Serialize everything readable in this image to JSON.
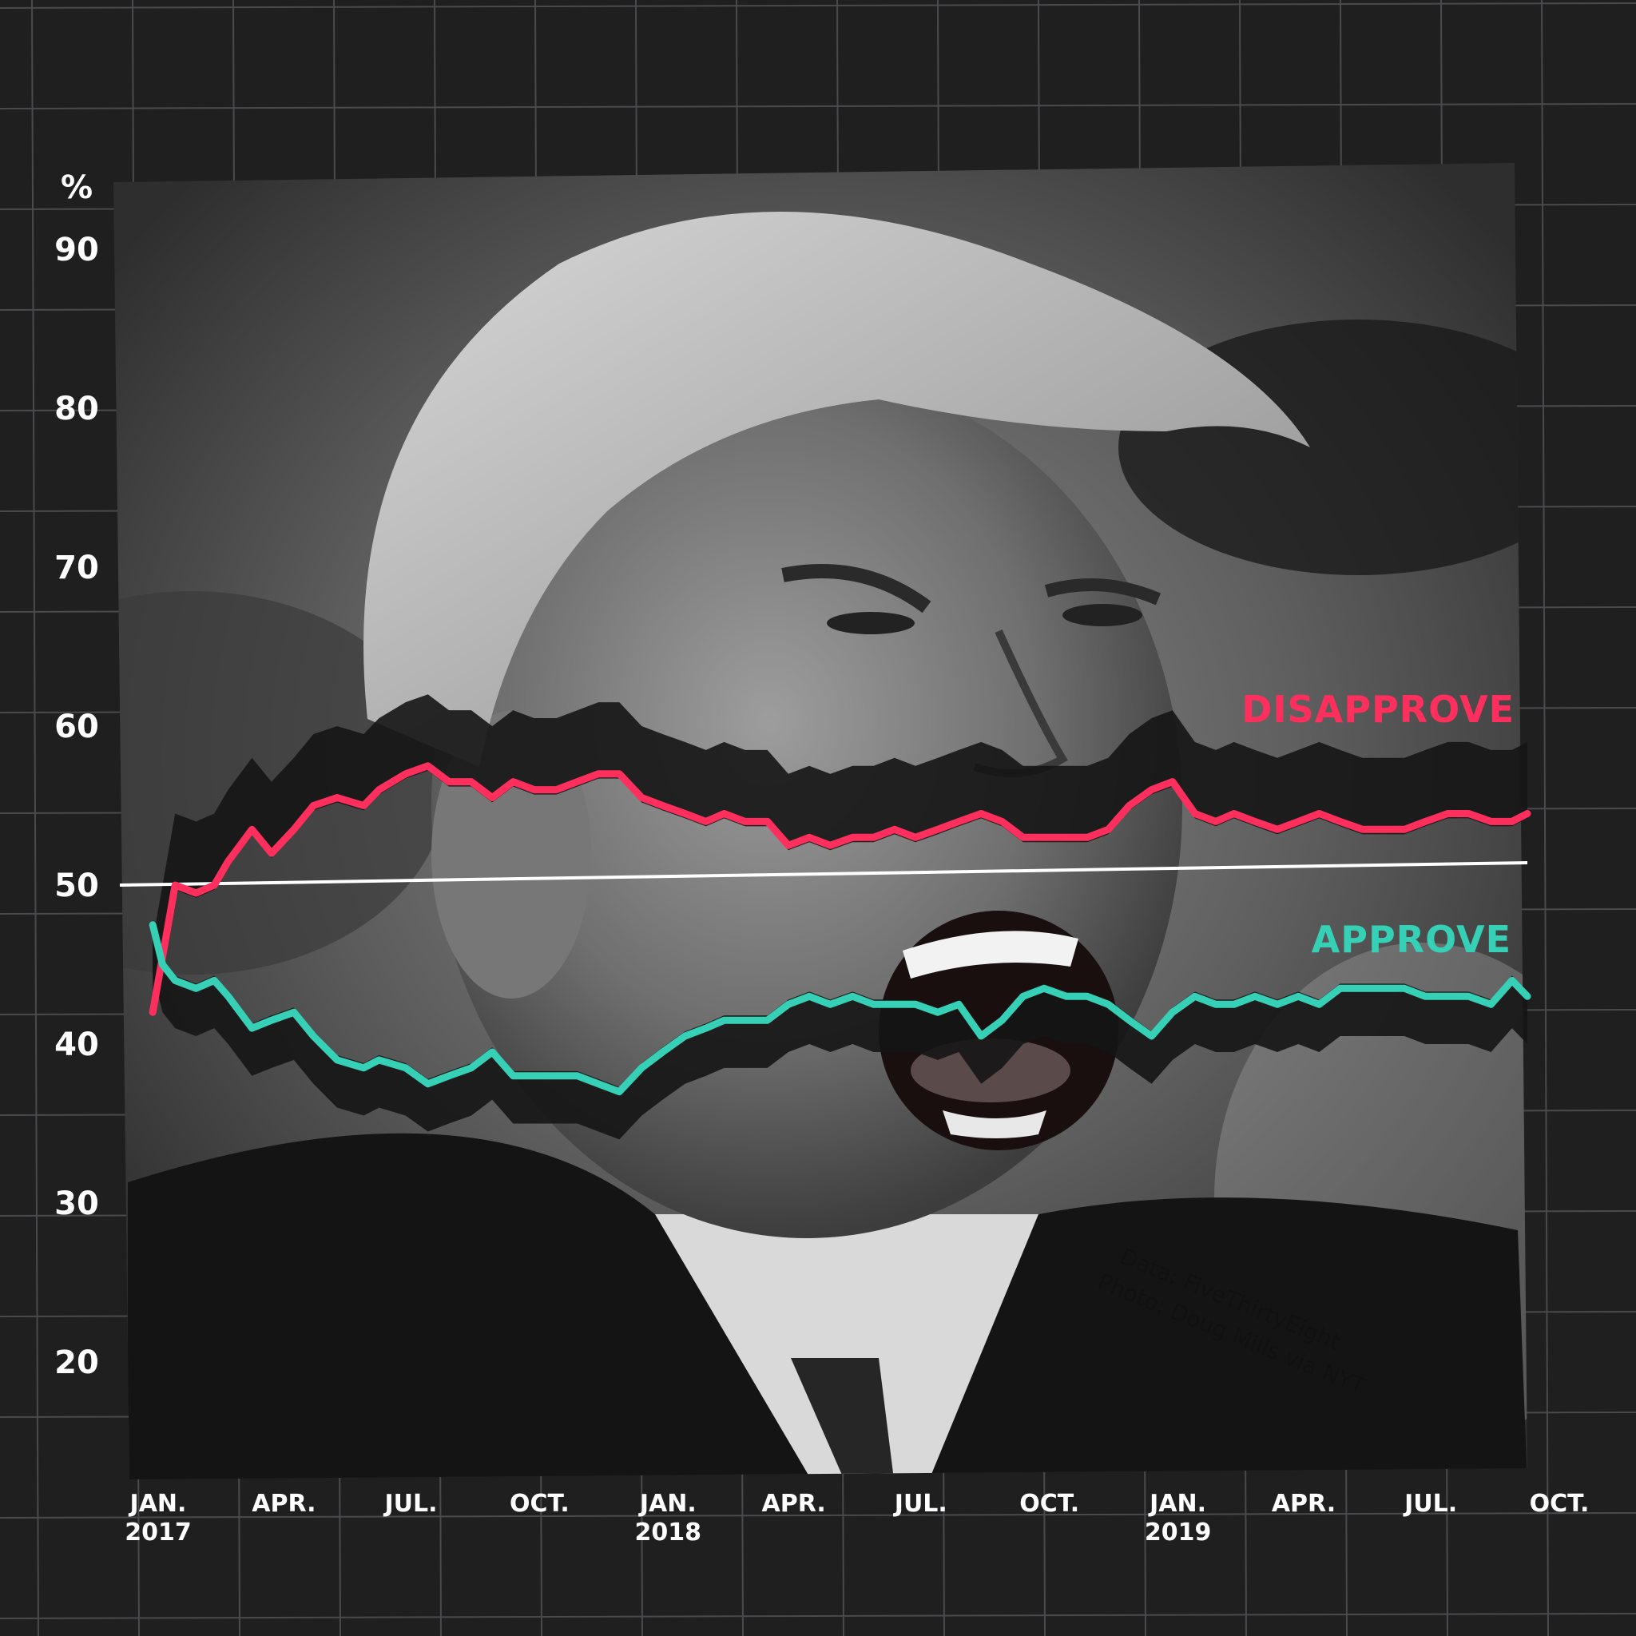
{
  "colors": {
    "background": "#1f1f20",
    "grid": "#4a4a4d",
    "disapprove": "#ff2f5d",
    "approve": "#35d0b5",
    "fifty_line": "#ffffff",
    "band": "#151515"
  },
  "photo": {
    "description_icon": "photo-portrait"
  },
  "credit": {
    "line1": "Data: FiveThirtyEight",
    "line2": "Photo: Doug Mills via NYT"
  },
  "chart_data": {
    "type": "line",
    "ylabel": "%",
    "ylim": [
      15,
      95
    ],
    "yticks": [
      20,
      30,
      40,
      50,
      60,
      70,
      80,
      90
    ],
    "ytick_labels": [
      "20",
      "30",
      "40",
      "50",
      "60",
      "70",
      "80",
      "90"
    ],
    "x_range": [
      "2017-01-20",
      "2019-10-01"
    ],
    "xticks": [
      {
        "date": "2017-01-01",
        "label": "JAN.",
        "sublabel": "2017"
      },
      {
        "date": "2017-04-01",
        "label": "APR.",
        "sublabel": ""
      },
      {
        "date": "2017-07-01",
        "label": "JUL.",
        "sublabel": ""
      },
      {
        "date": "2017-10-01",
        "label": "OCT.",
        "sublabel": ""
      },
      {
        "date": "2018-01-01",
        "label": "JAN.",
        "sublabel": "2018"
      },
      {
        "date": "2018-04-01",
        "label": "APR.",
        "sublabel": ""
      },
      {
        "date": "2018-07-01",
        "label": "JUL.",
        "sublabel": ""
      },
      {
        "date": "2018-10-01",
        "label": "OCT.",
        "sublabel": ""
      },
      {
        "date": "2019-01-01",
        "label": "JAN.",
        "sublabel": "2019"
      },
      {
        "date": "2019-04-01",
        "label": "APR.",
        "sublabel": ""
      },
      {
        "date": "2019-07-01",
        "label": "JUL.",
        "sublabel": ""
      },
      {
        "date": "2019-10-01",
        "label": "OCT.",
        "sublabel": ""
      }
    ],
    "reference_line": 50,
    "series": [
      {
        "name": "DISAPPROVE",
        "points": [
          [
            "2017-01-20",
            42.0
          ],
          [
            "2017-01-27",
            45.5
          ],
          [
            "2017-02-05",
            50.0
          ],
          [
            "2017-02-20",
            49.5
          ],
          [
            "2017-03-05",
            50.0
          ],
          [
            "2017-03-15",
            51.5
          ],
          [
            "2017-04-01",
            53.5
          ],
          [
            "2017-04-15",
            52.0
          ],
          [
            "2017-05-01",
            53.5
          ],
          [
            "2017-05-15",
            55.0
          ],
          [
            "2017-06-01",
            55.5
          ],
          [
            "2017-06-20",
            55.0
          ],
          [
            "2017-07-01",
            56.0
          ],
          [
            "2017-07-20",
            57.0
          ],
          [
            "2017-08-05",
            57.5
          ],
          [
            "2017-08-20",
            56.5
          ],
          [
            "2017-09-05",
            56.5
          ],
          [
            "2017-09-20",
            55.5
          ],
          [
            "2017-10-05",
            56.5
          ],
          [
            "2017-10-20",
            56.0
          ],
          [
            "2017-11-05",
            56.0
          ],
          [
            "2017-11-20",
            56.5
          ],
          [
            "2017-12-05",
            57.0
          ],
          [
            "2017-12-20",
            57.0
          ],
          [
            "2018-01-05",
            55.5
          ],
          [
            "2018-01-20",
            55.0
          ],
          [
            "2018-02-05",
            54.5
          ],
          [
            "2018-02-20",
            54.0
          ],
          [
            "2018-03-05",
            54.5
          ],
          [
            "2018-03-20",
            54.0
          ],
          [
            "2018-04-05",
            54.0
          ],
          [
            "2018-04-20",
            52.5
          ],
          [
            "2018-05-05",
            53.0
          ],
          [
            "2018-05-20",
            52.5
          ],
          [
            "2018-06-05",
            53.0
          ],
          [
            "2018-06-20",
            53.0
          ],
          [
            "2018-07-05",
            53.5
          ],
          [
            "2018-07-20",
            53.0
          ],
          [
            "2018-08-05",
            53.5
          ],
          [
            "2018-08-20",
            54.0
          ],
          [
            "2018-09-05",
            54.5
          ],
          [
            "2018-09-20",
            54.0
          ],
          [
            "2018-10-05",
            53.0
          ],
          [
            "2018-10-20",
            53.0
          ],
          [
            "2018-11-05",
            53.0
          ],
          [
            "2018-11-20",
            53.0
          ],
          [
            "2018-12-05",
            53.5
          ],
          [
            "2018-12-20",
            55.0
          ],
          [
            "2019-01-05",
            56.0
          ],
          [
            "2019-01-20",
            56.5
          ],
          [
            "2019-02-05",
            54.5
          ],
          [
            "2019-02-20",
            54.0
          ],
          [
            "2019-03-05",
            54.5
          ],
          [
            "2019-03-20",
            54.0
          ],
          [
            "2019-04-05",
            53.5
          ],
          [
            "2019-04-20",
            54.0
          ],
          [
            "2019-05-05",
            54.5
          ],
          [
            "2019-05-20",
            54.0
          ],
          [
            "2019-06-05",
            53.5
          ],
          [
            "2019-06-20",
            53.5
          ],
          [
            "2019-07-05",
            53.5
          ],
          [
            "2019-07-20",
            54.0
          ],
          [
            "2019-08-05",
            54.5
          ],
          [
            "2019-08-20",
            54.5
          ],
          [
            "2019-09-05",
            54.0
          ],
          [
            "2019-09-20",
            54.0
          ],
          [
            "2019-10-01",
            54.5
          ]
        ]
      },
      {
        "name": "APPROVE",
        "points": [
          [
            "2017-01-20",
            47.5
          ],
          [
            "2017-01-27",
            45.0
          ],
          [
            "2017-02-05",
            44.0
          ],
          [
            "2017-02-20",
            43.5
          ],
          [
            "2017-03-05",
            44.0
          ],
          [
            "2017-03-15",
            43.0
          ],
          [
            "2017-04-01",
            41.0
          ],
          [
            "2017-04-15",
            41.5
          ],
          [
            "2017-05-01",
            42.0
          ],
          [
            "2017-05-15",
            40.5
          ],
          [
            "2017-06-01",
            39.0
          ],
          [
            "2017-06-20",
            38.5
          ],
          [
            "2017-07-01",
            39.0
          ],
          [
            "2017-07-20",
            38.5
          ],
          [
            "2017-08-05",
            37.5
          ],
          [
            "2017-08-20",
            38.0
          ],
          [
            "2017-09-05",
            38.5
          ],
          [
            "2017-09-20",
            39.5
          ],
          [
            "2017-10-05",
            38.0
          ],
          [
            "2017-10-20",
            38.0
          ],
          [
            "2017-11-05",
            38.0
          ],
          [
            "2017-11-20",
            38.0
          ],
          [
            "2017-12-05",
            37.5
          ],
          [
            "2017-12-20",
            37.0
          ],
          [
            "2018-01-05",
            38.5
          ],
          [
            "2018-01-20",
            39.5
          ],
          [
            "2018-02-05",
            40.5
          ],
          [
            "2018-02-20",
            41.0
          ],
          [
            "2018-03-05",
            41.5
          ],
          [
            "2018-03-20",
            41.5
          ],
          [
            "2018-04-05",
            41.5
          ],
          [
            "2018-04-20",
            42.5
          ],
          [
            "2018-05-05",
            43.0
          ],
          [
            "2018-05-20",
            42.5
          ],
          [
            "2018-06-05",
            43.0
          ],
          [
            "2018-06-20",
            42.5
          ],
          [
            "2018-07-05",
            42.5
          ],
          [
            "2018-07-20",
            42.5
          ],
          [
            "2018-08-05",
            42.0
          ],
          [
            "2018-08-20",
            42.5
          ],
          [
            "2018-09-05",
            40.5
          ],
          [
            "2018-09-20",
            41.5
          ],
          [
            "2018-10-05",
            43.0
          ],
          [
            "2018-10-20",
            43.5
          ],
          [
            "2018-11-05",
            43.0
          ],
          [
            "2018-11-20",
            43.0
          ],
          [
            "2018-12-05",
            42.5
          ],
          [
            "2018-12-20",
            41.5
          ],
          [
            "2019-01-05",
            40.5
          ],
          [
            "2019-01-20",
            42.0
          ],
          [
            "2019-02-05",
            43.0
          ],
          [
            "2019-02-20",
            42.5
          ],
          [
            "2019-03-05",
            42.5
          ],
          [
            "2019-03-20",
            43.0
          ],
          [
            "2019-04-05",
            42.5
          ],
          [
            "2019-04-20",
            43.0
          ],
          [
            "2019-05-05",
            42.5
          ],
          [
            "2019-05-20",
            43.5
          ],
          [
            "2019-06-05",
            43.5
          ],
          [
            "2019-06-20",
            43.5
          ],
          [
            "2019-07-05",
            43.5
          ],
          [
            "2019-07-20",
            43.0
          ],
          [
            "2019-08-05",
            43.0
          ],
          [
            "2019-08-20",
            43.0
          ],
          [
            "2019-09-05",
            42.5
          ],
          [
            "2019-09-20",
            44.0
          ],
          [
            "2019-10-01",
            43.0
          ]
        ]
      }
    ]
  }
}
